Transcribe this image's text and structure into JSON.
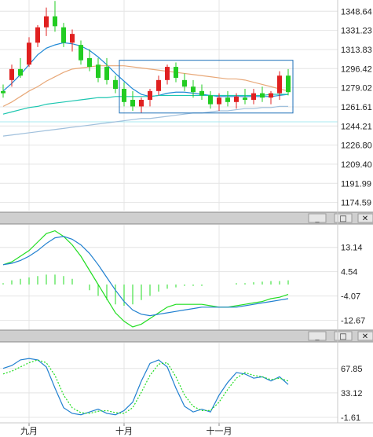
{
  "chart_data": [
    {
      "type": "candlestick",
      "panel": "price",
      "y_ticks": [
        1348.64,
        1331.23,
        1313.83,
        1296.42,
        1279.02,
        1261.61,
        1244.21,
        1226.8,
        1209.4,
        1191.99,
        1174.59
      ],
      "ylim": [
        1170,
        1356
      ],
      "x_ticks": [
        {
          "label": "九月",
          "index": 3
        },
        {
          "label": "十月",
          "index": 14
        },
        {
          "label": "十一月",
          "index": 25
        }
      ],
      "candles": [
        {
          "o": 1276,
          "h": 1282,
          "l": 1270,
          "c": 1274
        },
        {
          "o": 1286,
          "h": 1300,
          "l": 1280,
          "c": 1296
        },
        {
          "o": 1296,
          "h": 1306,
          "l": 1288,
          "c": 1290
        },
        {
          "o": 1300,
          "h": 1325,
          "l": 1298,
          "c": 1320
        },
        {
          "o": 1320,
          "h": 1336,
          "l": 1316,
          "c": 1334
        },
        {
          "o": 1334,
          "h": 1352,
          "l": 1326,
          "c": 1344
        },
        {
          "o": 1344,
          "h": 1358,
          "l": 1330,
          "c": 1335
        },
        {
          "o": 1334,
          "h": 1338,
          "l": 1316,
          "c": 1320
        },
        {
          "o": 1320,
          "h": 1332,
          "l": 1312,
          "c": 1328
        },
        {
          "o": 1318,
          "h": 1322,
          "l": 1300,
          "c": 1304
        },
        {
          "o": 1306,
          "h": 1314,
          "l": 1294,
          "c": 1298
        },
        {
          "o": 1300,
          "h": 1306,
          "l": 1284,
          "c": 1288
        },
        {
          "o": 1298,
          "h": 1306,
          "l": 1282,
          "c": 1286
        },
        {
          "o": 1286,
          "h": 1290,
          "l": 1274,
          "c": 1278
        },
        {
          "o": 1278,
          "h": 1284,
          "l": 1262,
          "c": 1266
        },
        {
          "o": 1268,
          "h": 1276,
          "l": 1258,
          "c": 1262
        },
        {
          "o": 1262,
          "h": 1270,
          "l": 1256,
          "c": 1268
        },
        {
          "o": 1268,
          "h": 1278,
          "l": 1262,
          "c": 1276
        },
        {
          "o": 1276,
          "h": 1290,
          "l": 1272,
          "c": 1286
        },
        {
          "o": 1286,
          "h": 1300,
          "l": 1282,
          "c": 1298
        },
        {
          "o": 1298,
          "h": 1302,
          "l": 1284,
          "c": 1288
        },
        {
          "o": 1286,
          "h": 1292,
          "l": 1276,
          "c": 1280
        },
        {
          "o": 1280,
          "h": 1286,
          "l": 1270,
          "c": 1275
        },
        {
          "o": 1276,
          "h": 1282,
          "l": 1268,
          "c": 1272
        },
        {
          "o": 1272,
          "h": 1276,
          "l": 1260,
          "c": 1264
        },
        {
          "o": 1264,
          "h": 1274,
          "l": 1258,
          "c": 1270
        },
        {
          "o": 1270,
          "h": 1276,
          "l": 1262,
          "c": 1266
        },
        {
          "o": 1266,
          "h": 1274,
          "l": 1260,
          "c": 1271
        },
        {
          "o": 1270,
          "h": 1278,
          "l": 1264,
          "c": 1268
        },
        {
          "o": 1268,
          "h": 1278,
          "l": 1264,
          "c": 1274
        },
        {
          "o": 1274,
          "h": 1280,
          "l": 1266,
          "c": 1270
        },
        {
          "o": 1270,
          "h": 1276,
          "l": 1264,
          "c": 1274
        },
        {
          "o": 1274,
          "h": 1294,
          "l": 1268,
          "c": 1290
        },
        {
          "o": 1290,
          "h": 1296,
          "l": 1272,
          "c": 1275
        }
      ],
      "series": [
        {
          "color": "#1e88d6",
          "values": [
            1276,
            1283,
            1291,
            1300,
            1309,
            1315,
            1318,
            1320,
            1319,
            1317,
            1313,
            1307,
            1300,
            1292,
            1285,
            1278,
            1273,
            1271,
            1272,
            1274,
            1275,
            1275,
            1274,
            1273,
            1272,
            1271,
            1271,
            1271,
            1271,
            1271,
            1271,
            1271,
            1272,
            1273
          ]
        },
        {
          "color": "#e8a878",
          "values": [
            1262,
            1266,
            1271,
            1276,
            1280,
            1285,
            1289,
            1293,
            1296,
            1297,
            1298,
            1299,
            1299,
            1299,
            1299,
            1298,
            1297,
            1296,
            1295,
            1294,
            1293,
            1292,
            1291,
            1290,
            1289,
            1288,
            1287,
            1287,
            1286,
            1284,
            1282,
            1280,
            1278,
            1276
          ]
        },
        {
          "color": "#1cc6b0",
          "values": [
            1255,
            1257,
            1259,
            1261,
            1262,
            1264,
            1265,
            1266,
            1267,
            1268,
            1269,
            1270,
            1270,
            1271,
            1271,
            1271,
            1271,
            1271,
            1272,
            1272,
            1272,
            1272,
            1272,
            1272,
            1272,
            1272,
            1272,
            1272,
            1272,
            1272,
            1272,
            1273,
            1273,
            1273
          ]
        },
        {
          "color": "#a0c0dc",
          "values": [
            1235,
            1236,
            1237,
            1238,
            1239,
            1240,
            1241,
            1242,
            1243,
            1244,
            1245,
            1246,
            1247,
            1248,
            1249,
            1250,
            1251,
            1251,
            1252,
            1253,
            1254,
            1255,
            1256,
            1256,
            1257,
            1258,
            1258,
            1259,
            1260,
            1260,
            1261,
            1261,
            1262,
            1262
          ]
        }
      ],
      "reference_lines": [
        {
          "color": "#a8e8f0",
          "value": 1248
        }
      ],
      "highlight_box": {
        "from_index": 14,
        "to_index": 33,
        "y_low": 1256,
        "y_high": 1304
      }
    },
    {
      "type": "line",
      "panel": "macd",
      "y_ticks": [
        13.14,
        4.54,
        -4.07,
        -12.67
      ],
      "ylim": [
        -15,
        20
      ],
      "series": [
        {
          "color": "#22dd22",
          "values": [
            7,
            8,
            10,
            12,
            15,
            18,
            19,
            17,
            14,
            10,
            5,
            0,
            -5,
            -10,
            -13,
            -15,
            -14,
            -12,
            -10,
            -8,
            -7,
            -7,
            -7,
            -7,
            -7.5,
            -8,
            -8,
            -7.5,
            -7,
            -6.5,
            -6,
            -5,
            -4.5,
            -3.5
          ]
        },
        {
          "color": "#2080d0",
          "values": [
            7,
            7.5,
            8.5,
            10,
            12,
            14.5,
            16.5,
            17,
            16,
            14,
            11,
            7,
            2.5,
            -2,
            -6,
            -9,
            -10.5,
            -11,
            -10.5,
            -10,
            -9.5,
            -9,
            -8.5,
            -8,
            -8,
            -8,
            -8,
            -8,
            -7.5,
            -7,
            -6.5,
            -6,
            -5.5,
            -5
          ]
        }
      ],
      "histogram": {
        "color": "#22dd22",
        "values": [
          0.5,
          1.5,
          2,
          2.5,
          3,
          3.5,
          3.5,
          3,
          2,
          0,
          -2,
          -4,
          -5.5,
          -7,
          -7.5,
          -7,
          -5.5,
          -4,
          -2.5,
          -1.5,
          -1,
          -0.5,
          -0.5,
          -0.5,
          0,
          0,
          0,
          0.5,
          0.5,
          0.8,
          1,
          1.2,
          1.2,
          1.5
        ]
      }
    },
    {
      "type": "line",
      "panel": "oscillator",
      "y_ticks": [
        67.85,
        33.12,
        -1.61
      ],
      "ylim": [
        -5,
        100
      ],
      "series": [
        {
          "color": "#2080d0",
          "values": [
            68,
            72,
            80,
            82,
            80,
            70,
            40,
            12,
            4,
            2,
            6,
            10,
            4,
            2,
            8,
            20,
            50,
            75,
            80,
            70,
            40,
            14,
            6,
            10,
            6,
            30,
            48,
            62,
            60,
            54,
            56,
            50,
            56,
            45
          ]
        },
        {
          "color": "#22dd22",
          "values": [
            60,
            64,
            70,
            76,
            80,
            76,
            58,
            30,
            12,
            5,
            4,
            7,
            8,
            5,
            4,
            12,
            34,
            58,
            74,
            76,
            56,
            30,
            14,
            8,
            8,
            20,
            38,
            54,
            62,
            58,
            56,
            52,
            54,
            50
          ]
        }
      ]
    }
  ],
  "toolbar_glyphs": {
    "minimize": "_",
    "restore": "□",
    "close": "✕"
  }
}
